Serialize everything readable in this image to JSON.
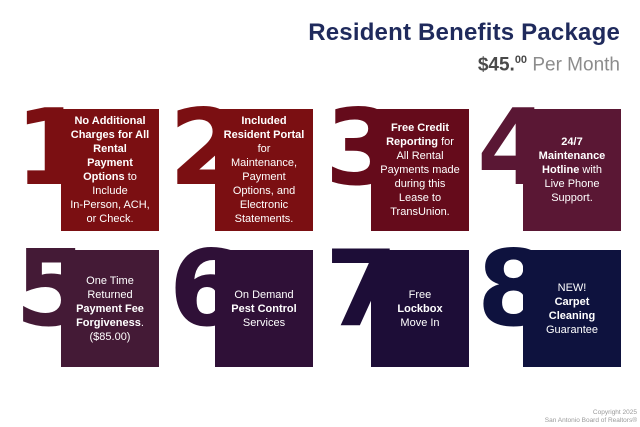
{
  "header": {
    "title": "Resident Benefits Package",
    "price": "$45.",
    "price_sup": "00",
    "price_suffix": " Per Month"
  },
  "footer": {
    "line1": "Copyright 2025",
    "line2": "San Antonio Board of Realtors®"
  },
  "colors": {
    "title": "#1F2A5C",
    "price": "#4A4A4A",
    "price_suffix": "#8C8C8C",
    "footer": "#9A9A9A"
  },
  "blocks": [
    {
      "digit": "1",
      "color": "#7B0F12",
      "segments": [
        {
          "t": "No Additional\nCharges for All\nRental\nPayment\nOptions",
          "b": true
        },
        {
          "t": " to\nInclude\nIn-Person, ACH,\nor Check.",
          "b": false
        }
      ]
    },
    {
      "digit": "2",
      "color": "#7B0F12",
      "segments": [
        {
          "t": "Included\nResident Portal",
          "b": true
        },
        {
          "t": "\nfor\nMaintenance,\nPayment\nOptions, and\nElectronic\nStatements.",
          "b": false
        }
      ]
    },
    {
      "digit": "3",
      "color": "#650B1B",
      "segments": [
        {
          "t": "Free Credit\nReporting",
          "b": true
        },
        {
          "t": " for\nAll Rental\nPayments made\nduring this\nLease to\nTransUnion.",
          "b": false
        }
      ]
    },
    {
      "digit": "4",
      "color": "#5A1734",
      "segments": [
        {
          "t": "24/7\nMaintenance\nHotline",
          "b": true
        },
        {
          "t": " with\nLive Phone\nSupport.",
          "b": false
        }
      ]
    },
    {
      "digit": "5",
      "color": "#441A36",
      "segments": [
        {
          "t": "One Time\nReturned\n",
          "b": false
        },
        {
          "t": "Payment Fee\nForgiveness",
          "b": true
        },
        {
          "t": ".\n($85.00)",
          "b": false
        }
      ]
    },
    {
      "digit": "6",
      "color": "#2F1037",
      "segments": [
        {
          "t": "On Demand\n",
          "b": false
        },
        {
          "t": "Pest Control",
          "b": true
        },
        {
          "t": "\nServices",
          "b": false
        }
      ]
    },
    {
      "digit": "7",
      "color": "#1D0D37",
      "segments": [
        {
          "t": "Free\n",
          "b": false
        },
        {
          "t": "Lockbox",
          "b": true
        },
        {
          "t": "\nMove In",
          "b": false
        }
      ]
    },
    {
      "digit": "8",
      "color": "#0E123E",
      "segments": [
        {
          "t": "NEW!\n",
          "b": false
        },
        {
          "t": "Carpet\nCleaning",
          "b": true
        },
        {
          "t": "\nGuarantee",
          "b": false
        }
      ]
    }
  ]
}
